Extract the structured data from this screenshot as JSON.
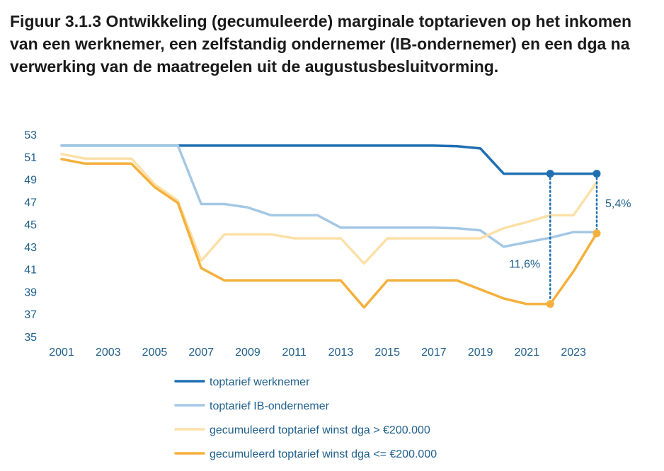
{
  "title": "Figuur 3.1.3 Ontwikkeling (gecumuleerde) marginale toptarieven op het inkomen van een werknemer, een zelfstandig ondernemer (IB-ondernemer) en een dga na verwerking van de maatregelen uit de augustusbesluitvorming.",
  "chart_data": {
    "type": "line",
    "title": "Figuur 3.1.3 Ontwikkeling (gecumuleerde) marginale toptarieven op het inkomen van een werknemer, een zelfstandig ondernemer (IB-ondernemer) en een dga na verwerking van de maatregelen uit de augustusbesluitvorming.",
    "xlabel": "",
    "ylabel": "",
    "xlim": [
      2001,
      2024
    ],
    "ylim": [
      35,
      53
    ],
    "x_ticks": [
      "2001",
      "2003",
      "2005",
      "2007",
      "2009",
      "2011",
      "2013",
      "2015",
      "2017",
      "2019",
      "2021",
      "2023"
    ],
    "y_ticks": [
      "35",
      "37",
      "39",
      "41",
      "43",
      "45",
      "47",
      "49",
      "51",
      "53"
    ],
    "grid": false,
    "legend_position": "bottom",
    "x": [
      2001,
      2002,
      2003,
      2004,
      2005,
      2006,
      2007,
      2008,
      2009,
      2010,
      2011,
      2012,
      2013,
      2014,
      2015,
      2016,
      2017,
      2018,
      2019,
      2020,
      2021,
      2022,
      2023,
      2024
    ],
    "series": [
      {
        "name": "toptarief werknemer",
        "color": "#1f6fb2",
        "values": [
          52,
          52,
          52,
          52,
          52,
          52,
          52,
          52,
          52,
          52,
          52,
          52,
          52,
          52,
          52,
          52,
          52,
          51.95,
          51.75,
          49.5,
          49.5,
          49.5,
          49.5,
          49.5
        ]
      },
      {
        "name": "toptarief IB-ondernemer",
        "color": "#a4c8e4",
        "values": [
          52,
          52,
          52,
          52,
          52,
          52,
          46.8,
          46.8,
          46.5,
          45.8,
          45.8,
          45.8,
          44.7,
          44.7,
          44.7,
          44.7,
          44.7,
          44.65,
          44.45,
          43.0,
          43.4,
          43.8,
          44.3,
          44.3
        ]
      },
      {
        "name": "gecumuleerd toptarief winst dga >  €200.000",
        "color": "#fce0a8",
        "values": [
          51.25,
          50.85,
          50.85,
          50.85,
          48.55,
          47.1,
          41.75,
          44.1,
          44.1,
          44.1,
          43.75,
          43.75,
          43.75,
          41.5,
          43.75,
          43.75,
          43.75,
          43.75,
          43.75,
          44.65,
          45.2,
          45.8,
          45.8,
          48.75
        ]
      },
      {
        "name": "gecumuleerd toptarief winst dga <= €200.000",
        "color": "#f4b03c",
        "values": [
          50.8,
          50.4,
          50.4,
          50.4,
          48.3,
          46.9,
          41.1,
          40.0,
          40.0,
          40.0,
          40.0,
          40.0,
          40.0,
          37.6,
          40.0,
          40.0,
          40.0,
          40.0,
          39.2,
          38.4,
          37.9,
          37.9,
          40.8,
          44.2
        ]
      }
    ],
    "annotations": [
      {
        "text": "11,6%",
        "x": 2022,
        "from": 37.9,
        "to": 49.5,
        "color": "#1f6fb2"
      },
      {
        "text": "5,4%",
        "x": 2024,
        "from": 44.2,
        "to": 49.5,
        "color": "#1f6fb2"
      }
    ],
    "markers": [
      {
        "series": 0,
        "x": 2022,
        "y": 49.5
      },
      {
        "series": 0,
        "x": 2024,
        "y": 49.5
      },
      {
        "series": 3,
        "x": 2022,
        "y": 37.9
      },
      {
        "series": 3,
        "x": 2024,
        "y": 44.2
      }
    ]
  }
}
